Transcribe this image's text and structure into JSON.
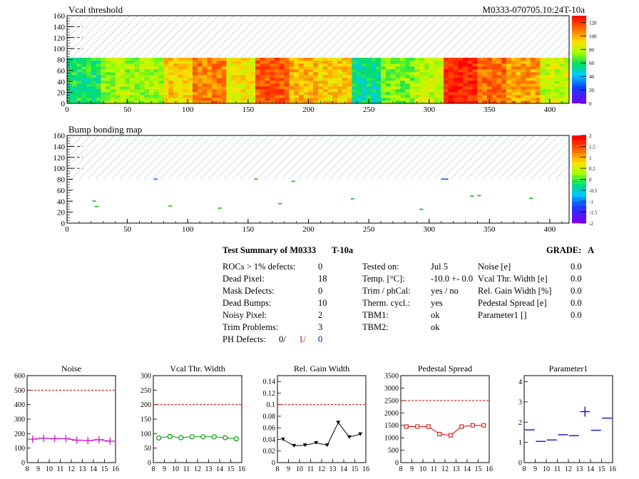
{
  "header": {
    "map1_title": "Vcal threshold",
    "module_label": "M0333-070705.10:24T-10a",
    "map2_title": "Bump bonding map"
  },
  "colors": {
    "hatch": "#7fa8b8",
    "red": "#e00000",
    "magenta": "#cc00cc",
    "green": "#00a000",
    "blue": "#0000dd"
  },
  "maps": {
    "x_ticks": [
      "0",
      "50",
      "100",
      "150",
      "200",
      "250",
      "300",
      "350",
      "400"
    ],
    "y_ticks": [
      "0",
      "20",
      "40",
      "60",
      "80",
      "100",
      "120",
      "140",
      "160"
    ],
    "x_max": 416,
    "y_max": 160,
    "filled_y": 80,
    "palette1_ticks": [
      "0",
      "20",
      "40",
      "60",
      "80",
      "100",
      "120"
    ],
    "palette1_max": 130,
    "palette2_ticks": [
      "-2",
      "-1.5",
      "-1",
      "-0.5",
      "0",
      "0.5",
      "1",
      "1.5",
      "2"
    ],
    "roc_levels": [
      0.45,
      0.58,
      0.58,
      0.72,
      0.82,
      0.68,
      0.88,
      0.75,
      0.72,
      0.42,
      0.55,
      0.62,
      0.95,
      0.85,
      0.78,
      0.62
    ],
    "bump_marks": [
      {
        "x": 72,
        "y": 80,
        "c": "blue"
      },
      {
        "x": 84,
        "y": 31,
        "c": "green"
      },
      {
        "x": 21,
        "y": 40,
        "c": "green"
      },
      {
        "x": 23,
        "y": 30,
        "c": "green"
      },
      {
        "x": 125,
        "y": 27,
        "c": "green"
      },
      {
        "x": 155,
        "y": 80,
        "c": "green"
      },
      {
        "x": 175,
        "y": 35,
        "c": "green"
      },
      {
        "x": 186,
        "y": 76,
        "c": "green"
      },
      {
        "x": 235,
        "y": 44,
        "c": "green"
      },
      {
        "x": 292,
        "y": 25,
        "c": "green"
      },
      {
        "x": 310,
        "y": 80,
        "c": "blue"
      },
      {
        "x": 313,
        "y": 80,
        "c": "blue"
      },
      {
        "x": 334,
        "y": 49,
        "c": "green"
      },
      {
        "x": 340,
        "y": 50,
        "c": "green"
      },
      {
        "x": 383,
        "y": 45,
        "c": "green"
      }
    ]
  },
  "summary": {
    "title": "Test Summary of M0333",
    "test_id": "T-10a",
    "grade_label": "GRADE:",
    "grade": "A",
    "left": [
      {
        "label": "ROCs > 1% defects:",
        "value": "0"
      },
      {
        "label": "Dead Pixel:",
        "value": "18"
      },
      {
        "label": "Mask Defects:",
        "value": "0"
      },
      {
        "label": "Dead Bumps:",
        "value": "10"
      },
      {
        "label": "Noisy Pixel:",
        "value": "2"
      },
      {
        "label": "Trim Problems:",
        "value": "3"
      }
    ],
    "ph_label": "PH Defects:",
    "ph_values": [
      "0/",
      "1/",
      "0"
    ],
    "middle": [
      {
        "label": "Tested on:",
        "value": "Jul 5"
      },
      {
        "label": "Temp. [°C]:",
        "value": "-10.0 +- 0.0"
      },
      {
        "label": "Trim / phCal:",
        "value": "yes / no"
      },
      {
        "label": "Therm. cycl.:",
        "value": "yes"
      },
      {
        "label": "TBM1:",
        "value": "ok"
      },
      {
        "label": "TBM2:",
        "value": "ok"
      }
    ],
    "right": [
      {
        "label": "Noise [e]",
        "value": "0.0"
      },
      {
        "label": "Vcal Thr. Width [e]",
        "value": "0.0"
      },
      {
        "label": "Rel. Gain Width [%]",
        "value": "0.0"
      },
      {
        "label": "Pedestal Spread [e]",
        "value": "0.0"
      },
      {
        "label": "Parameter1 []",
        "value": "0.0"
      }
    ]
  },
  "chart_data": [
    {
      "type": "line",
      "title": "Noise",
      "color": "#cc00cc",
      "marker": "cross",
      "x": [
        8.5,
        9.5,
        10.5,
        11.5,
        12.5,
        13.5,
        14.5,
        15.5
      ],
      "values": [
        162,
        168,
        165,
        165,
        155,
        152,
        158,
        148
      ],
      "ylim": [
        0,
        600
      ],
      "threshold": 500,
      "yticks": [
        "0",
        "100",
        "200",
        "300",
        "400",
        "500",
        "600"
      ],
      "xticks": [
        "8",
        "9",
        "10",
        "11",
        "12",
        "13",
        "14",
        "15",
        "16"
      ]
    },
    {
      "type": "line",
      "title": "Vcal Thr. Width",
      "color": "#00a000",
      "marker": "circle",
      "x": [
        8.5,
        9.5,
        10.5,
        11.5,
        12.5,
        13.5,
        14.5,
        15.5
      ],
      "values": [
        85,
        90,
        86,
        89,
        89,
        89,
        86,
        82
      ],
      "ylim": [
        0,
        300
      ],
      "threshold": 200,
      "yticks": [
        "0",
        "50",
        "100",
        "150",
        "200",
        "250",
        "300"
      ],
      "xticks": [
        "8",
        "9",
        "10",
        "11",
        "12",
        "13",
        "14",
        "15",
        "16"
      ]
    },
    {
      "type": "line",
      "title": "Rel. Gain Width",
      "color": "#000000",
      "marker": "triangle",
      "x": [
        8.5,
        9.5,
        10.5,
        11.5,
        12.5,
        13.5,
        14.5,
        15.5
      ],
      "values": [
        0.04,
        0.029,
        0.03,
        0.034,
        0.03,
        0.069,
        0.044,
        0.049
      ],
      "ylim": [
        0,
        0.15
      ],
      "threshold": 0.1,
      "yticks": [
        "0",
        "0.02",
        "0.04",
        "0.06",
        "0.08",
        "0.1",
        "0.12",
        "0.14"
      ],
      "xticks": [
        "8",
        "9",
        "10",
        "11",
        "12",
        "13",
        "14",
        "15",
        "16"
      ]
    },
    {
      "type": "line",
      "title": "Pedestal Spread",
      "color": "#e00000",
      "marker": "square",
      "x": [
        8.5,
        9.5,
        10.5,
        11.5,
        12.5,
        13.5,
        14.5,
        15.5
      ],
      "values": [
        1450,
        1450,
        1450,
        1150,
        1100,
        1450,
        1500,
        1500
      ],
      "ylim": [
        0,
        3500
      ],
      "threshold": 2500,
      "yticks": [
        "0",
        "500",
        "1000",
        "1500",
        "2000",
        "2500",
        "3000",
        "3500"
      ],
      "xticks": [
        "8",
        "9",
        "10",
        "11",
        "12",
        "13",
        "14",
        "15",
        "16"
      ]
    },
    {
      "type": "scatter",
      "title": "Parameter1",
      "color": "#0000dd",
      "marker": "errorbar",
      "x": [
        8.5,
        9.5,
        10.5,
        11.5,
        12.5,
        13.5,
        14.5,
        15.5
      ],
      "values": [
        1.62,
        1.05,
        1.12,
        1.38,
        1.33,
        2.52,
        1.6,
        2.2
      ],
      "errors": [
        0.02,
        0.02,
        0.02,
        0.02,
        0.02,
        0.25,
        0.02,
        0.02
      ],
      "ylim": [
        0,
        4.3
      ],
      "threshold": null,
      "yticks": [
        "0",
        "1",
        "2",
        "3",
        "4"
      ],
      "xticks": [
        "8",
        "9",
        "10",
        "11",
        "12",
        "13",
        "14",
        "15",
        "16"
      ]
    }
  ]
}
